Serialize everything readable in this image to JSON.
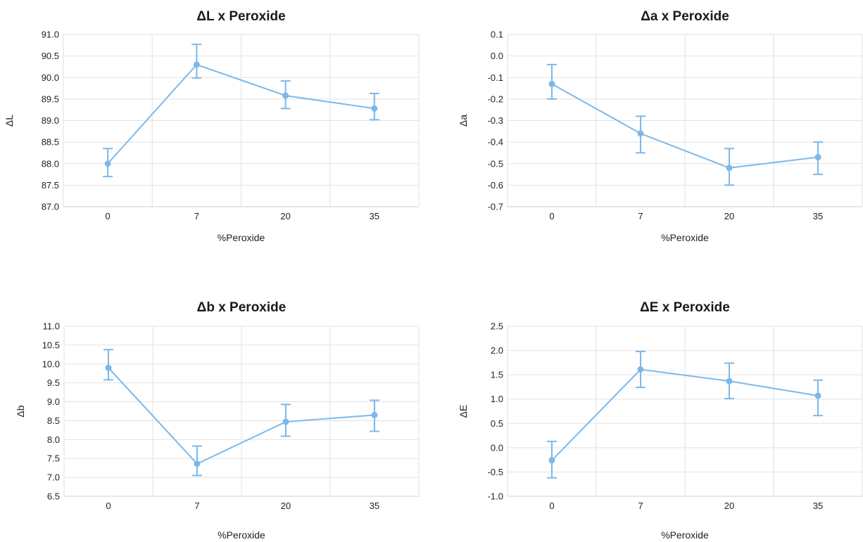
{
  "colors": {
    "series": "#7cb8ea",
    "grid": "#e2e2e2"
  },
  "chart_data": [
    {
      "type": "line",
      "title": "ΔL x Peroxide",
      "xlabel": "%Peroxide",
      "ylabel": "ΔL",
      "categories": [
        "0",
        "7",
        "20",
        "35"
      ],
      "ylim": [
        87.0,
        91.0
      ],
      "yticks": [
        "87.0",
        "87.5",
        "88.0",
        "88.5",
        "89.0",
        "89.5",
        "90.0",
        "90.5",
        "91.0"
      ],
      "grid": true,
      "series": [
        {
          "values": [
            88.0,
            90.3,
            89.58,
            89.28
          ],
          "error_low": [
            87.7,
            89.99,
            89.28,
            89.02
          ],
          "error_high": [
            88.35,
            90.77,
            89.92,
            89.63
          ]
        }
      ]
    },
    {
      "type": "line",
      "title": "Δa x Peroxide",
      "xlabel": "%Peroxide",
      "ylabel": "Δa",
      "categories": [
        "0",
        "7",
        "20",
        "35"
      ],
      "ylim": [
        -0.7,
        0.1
      ],
      "yticks": [
        "-0.7",
        "-0.6",
        "-0.5",
        "-0.4",
        "-0.3",
        "-0.2",
        "-0.1",
        "0.0",
        "0.1"
      ],
      "grid": true,
      "series": [
        {
          "values": [
            -0.13,
            -0.36,
            -0.52,
            -0.47
          ],
          "error_low": [
            -0.2,
            -0.45,
            -0.6,
            -0.55
          ],
          "error_high": [
            -0.04,
            -0.28,
            -0.43,
            -0.4
          ]
        }
      ]
    },
    {
      "type": "line",
      "title": "Δb x Peroxide",
      "xlabel": "%Peroxide",
      "ylabel": "Δb",
      "categories": [
        "0",
        "7",
        "20",
        "35"
      ],
      "ylim": [
        6.5,
        11.0
      ],
      "yticks": [
        "6.5",
        "7.0",
        "7.5",
        "8.0",
        "8.5",
        "9.0",
        "9.5",
        "10.0",
        "10.5",
        "11.0"
      ],
      "grid": true,
      "series": [
        {
          "values": [
            9.9,
            7.36,
            8.47,
            8.65
          ],
          "error_low": [
            9.58,
            7.05,
            8.09,
            8.22
          ],
          "error_high": [
            10.38,
            7.83,
            8.93,
            9.04
          ]
        }
      ]
    },
    {
      "type": "line",
      "title": "ΔE x Peroxide",
      "xlabel": "%Peroxide",
      "ylabel": "ΔE",
      "categories": [
        "0",
        "7",
        "20",
        "35"
      ],
      "ylim": [
        -1.0,
        2.5
      ],
      "yticks": [
        "-1.0",
        "-0.5",
        "0.0",
        "0.5",
        "1.0",
        "1.5",
        "2.0",
        "2.5"
      ],
      "grid": true,
      "series": [
        {
          "values": [
            -0.26,
            1.61,
            1.37,
            1.07
          ],
          "error_low": [
            -0.62,
            1.24,
            1.01,
            0.66
          ],
          "error_high": [
            0.13,
            1.98,
            1.74,
            1.39
          ]
        }
      ]
    }
  ]
}
